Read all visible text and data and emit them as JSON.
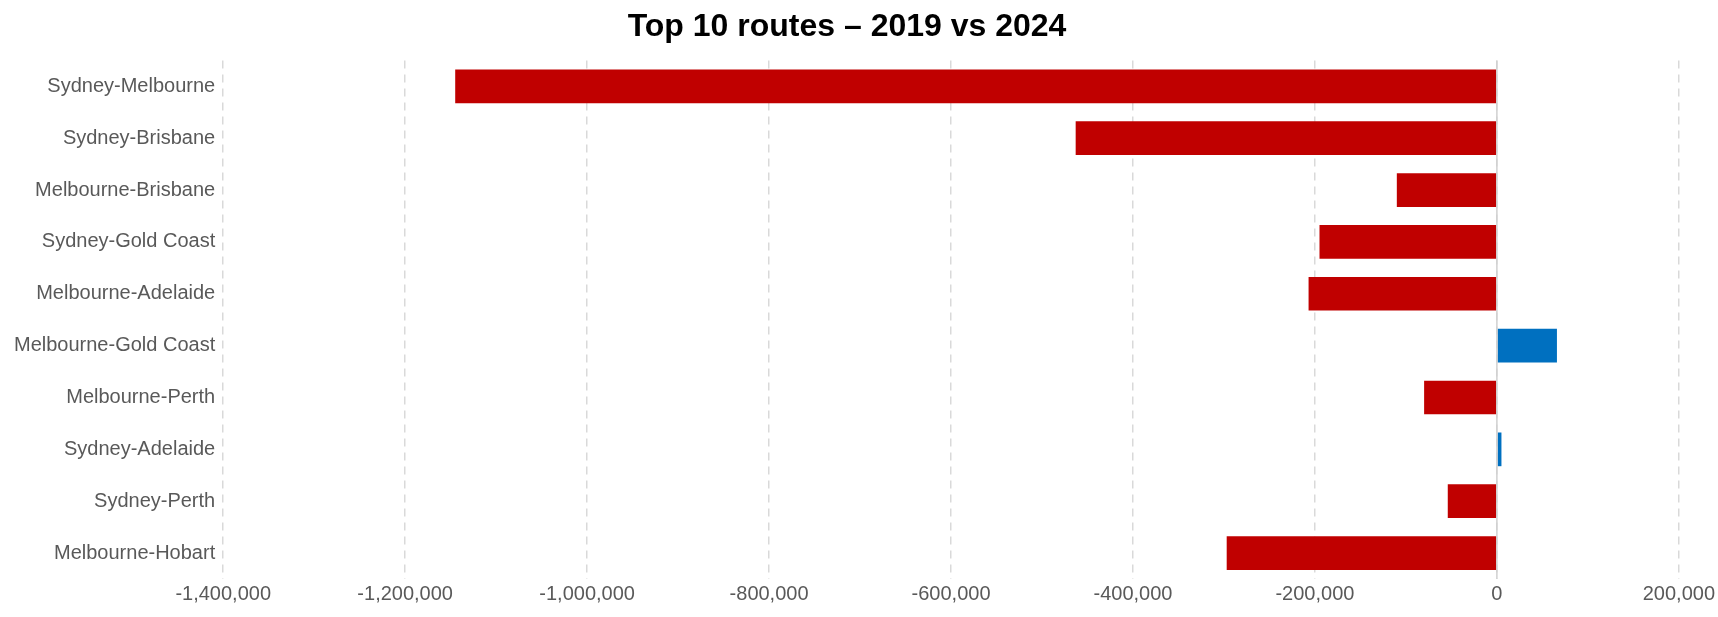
{
  "chart_data": {
    "type": "bar",
    "orientation": "horizontal",
    "title": "Top 10 routes – 2019 vs 2024",
    "categories": [
      "Sydney-Melbourne",
      "Sydney-Brisbane",
      "Melbourne-Brisbane",
      "Sydney-Gold Coast",
      "Melbourne-Adelaide",
      "Melbourne-Gold Coast",
      "Melbourne-Perth",
      "Sydney-Adelaide",
      "Sydney-Perth",
      "Melbourne-Hobart"
    ],
    "values": [
      -1145000,
      -463000,
      -110000,
      -195000,
      -207000,
      66000,
      -80000,
      5000,
      -54000,
      -297000
    ],
    "colors": [
      "#c00000",
      "#c00000",
      "#c00000",
      "#c00000",
      "#c00000",
      "#0070c0",
      "#c00000",
      "#0070c0",
      "#c00000",
      "#c00000"
    ],
    "xlim": [
      -1400000,
      200000
    ],
    "xticks": [
      {
        "value": -1400000,
        "label": "-1,400,000"
      },
      {
        "value": -1200000,
        "label": "-1,200,000"
      },
      {
        "value": -1000000,
        "label": "-1,000,000"
      },
      {
        "value": -800000,
        "label": "-800,000"
      },
      {
        "value": -600000,
        "label": "-600,000"
      },
      {
        "value": -400000,
        "label": "-400,000"
      },
      {
        "value": -200000,
        "label": "-200,000"
      },
      0,
      {
        "value": 200000,
        "label": "200,000"
      }
    ],
    "grid": "x",
    "legend": false
  }
}
